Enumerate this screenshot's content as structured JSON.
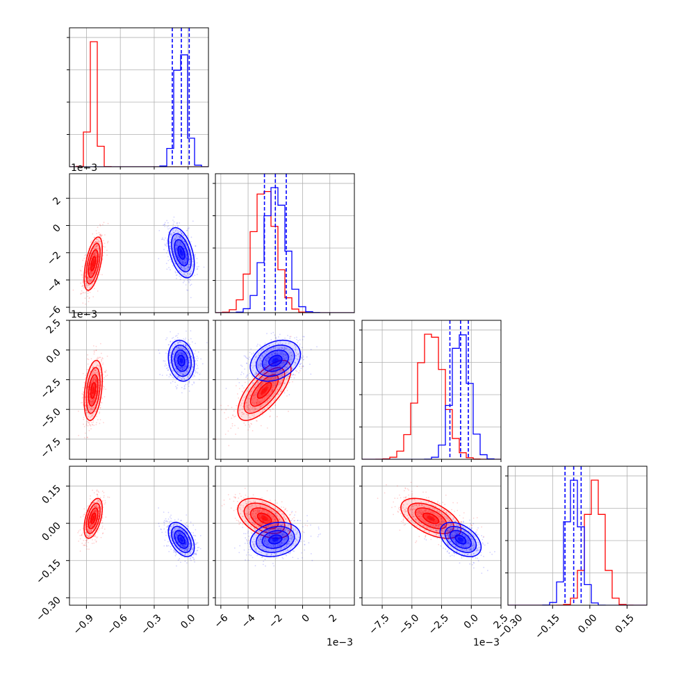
{
  "chart_data": {
    "type": "corner",
    "parameters": 4,
    "grid": true,
    "colors": {
      "red": "#ff0000",
      "blue": "#0000ff",
      "grid": "#b0b0b0",
      "axis": "#000000"
    },
    "series": [
      {
        "color": "#ff0000",
        "means": [
          -0.84,
          -0.0028,
          -0.0034,
          0.02
        ],
        "stds": [
          0.035,
          0.00085,
          0.0011,
          0.035
        ],
        "correlations": [
          [
            0,
            1,
            0.55
          ],
          [
            0,
            2,
            0.35
          ],
          [
            0,
            3,
            0.5
          ],
          [
            1,
            2,
            0.7
          ],
          [
            1,
            3,
            -0.45
          ],
          [
            2,
            3,
            -0.55
          ]
        ]
      },
      {
        "color": "#0000ff",
        "means": [
          -0.06,
          -0.002,
          -0.0009,
          -0.065
        ],
        "stds": [
          0.05,
          0.0008,
          0.00075,
          0.03
        ],
        "correlations": [
          [
            0,
            1,
            -0.45
          ],
          [
            0,
            2,
            -0.15
          ],
          [
            0,
            3,
            -0.45
          ],
          [
            1,
            2,
            0.3
          ],
          [
            1,
            3,
            0.2
          ],
          [
            2,
            3,
            -0.45
          ]
        ],
        "quantile_lines": [
          [
            -0.14,
            -0.06,
            0.01
          ],
          [
            -0.0028,
            -0.002,
            -0.0012
          ],
          [
            -0.0018,
            -0.0009,
            -0.00025
          ],
          [
            -0.1,
            -0.065,
            -0.035
          ]
        ]
      }
    ],
    "axes": [
      {
        "range": [
          -1.05,
          0.18
        ],
        "ticks": [
          -0.9,
          -0.6,
          -0.3,
          0.0
        ],
        "tick_labels": [
          "−0.9",
          "−0.6",
          "−0.3",
          "0.0"
        ],
        "offset_text": ""
      },
      {
        "range": [
          -0.0064,
          0.0038
        ],
        "ticks": [
          -0.006,
          -0.004,
          -0.002,
          0,
          0.002
        ],
        "tick_labels": [
          "−6",
          "−4",
          "−2",
          "0",
          "2"
        ],
        "offset_text": "1e−3"
      },
      {
        "range": [
          -0.0092,
          0.0025
        ],
        "ticks": [
          -0.0075,
          -0.005,
          -0.0025,
          0,
          0.0025
        ],
        "tick_labels": [
          "−7.5",
          "−5.0",
          "−2.5",
          "0.0",
          "2.5"
        ],
        "offset_text": "1e−3"
      },
      {
        "range": [
          -0.33,
          0.23
        ],
        "ticks": [
          -0.3,
          -0.15,
          0,
          0.15
        ],
        "tick_labels": [
          "−0.30",
          "−0.15",
          "0.00",
          "0.15"
        ],
        "offset_text": ""
      }
    ]
  }
}
